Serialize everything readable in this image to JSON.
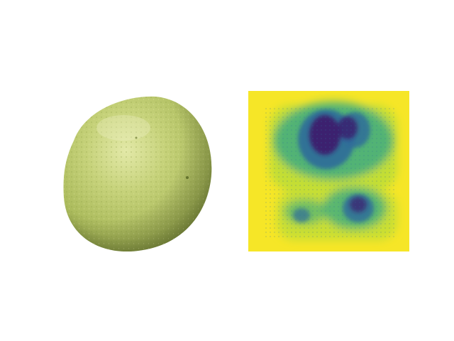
{
  "figure": {
    "panels": [
      {
        "kind": "photo",
        "subject": "lime",
        "colors": {
          "skin_light": "#c6d27a",
          "skin_mid": "#a9b95a",
          "skin_dark": "#6f7f33",
          "highlight": "#e3e9a8"
        }
      },
      {
        "kind": "heatmap",
        "colormap": "viridis",
        "colors": {
          "background": "#f6e627",
          "low": "#3b1f6e",
          "mid_blue": "#2f6c9a",
          "mid_teal": "#2aa58a",
          "high_green": "#b6dc37"
        }
      }
    ]
  }
}
